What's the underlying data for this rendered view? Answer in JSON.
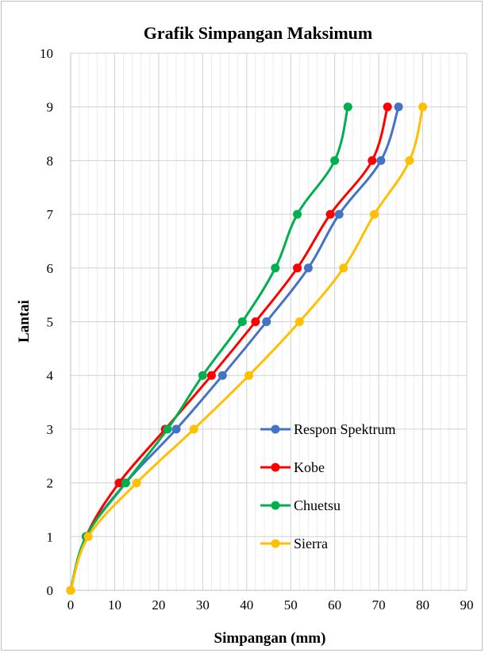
{
  "chart_data": {
    "type": "line",
    "title": "Grafik Simpangan Maksimum",
    "xlabel": "Simpangan (mm)",
    "ylabel": "Lantai",
    "xlim": [
      0,
      90
    ],
    "ylim": [
      0,
      10
    ],
    "x_ticks": [
      "0",
      "10",
      "20",
      "30",
      "40",
      "50",
      "60",
      "70",
      "80",
      "90"
    ],
    "y_ticks": [
      "0",
      "1",
      "2",
      "3",
      "4",
      "5",
      "6",
      "7",
      "8",
      "9",
      "10"
    ],
    "grid": true,
    "legend_position": "bottom-right",
    "series": [
      {
        "name": "Respon Spektrum",
        "color": "#4472c4",
        "x": [
          0,
          3.5,
          12.5,
          24,
          34.5,
          44.5,
          54,
          61,
          70.5,
          74.5
        ],
        "y": [
          0,
          1,
          2,
          3,
          4,
          5,
          6,
          7,
          8,
          9
        ]
      },
      {
        "name": "Kobe",
        "color": "#ff0000",
        "x": [
          0,
          3.5,
          11,
          21.5,
          32,
          42,
          51.5,
          59,
          68.5,
          72
        ],
        "y": [
          0,
          1,
          2,
          3,
          4,
          5,
          6,
          7,
          8,
          9
        ]
      },
      {
        "name": "Chuetsu",
        "color": "#00b050",
        "x": [
          0,
          3.5,
          12.5,
          22,
          30,
          39,
          46.5,
          51.5,
          60,
          63
        ],
        "y": [
          0,
          1,
          2,
          3,
          4,
          5,
          6,
          7,
          8,
          9
        ]
      },
      {
        "name": "Sierra",
        "color": "#ffc000",
        "x": [
          0,
          4,
          15,
          28,
          40.5,
          52,
          62,
          69,
          77,
          80
        ],
        "y": [
          0,
          1,
          2,
          3,
          4,
          5,
          6,
          7,
          8,
          9
        ]
      }
    ]
  }
}
